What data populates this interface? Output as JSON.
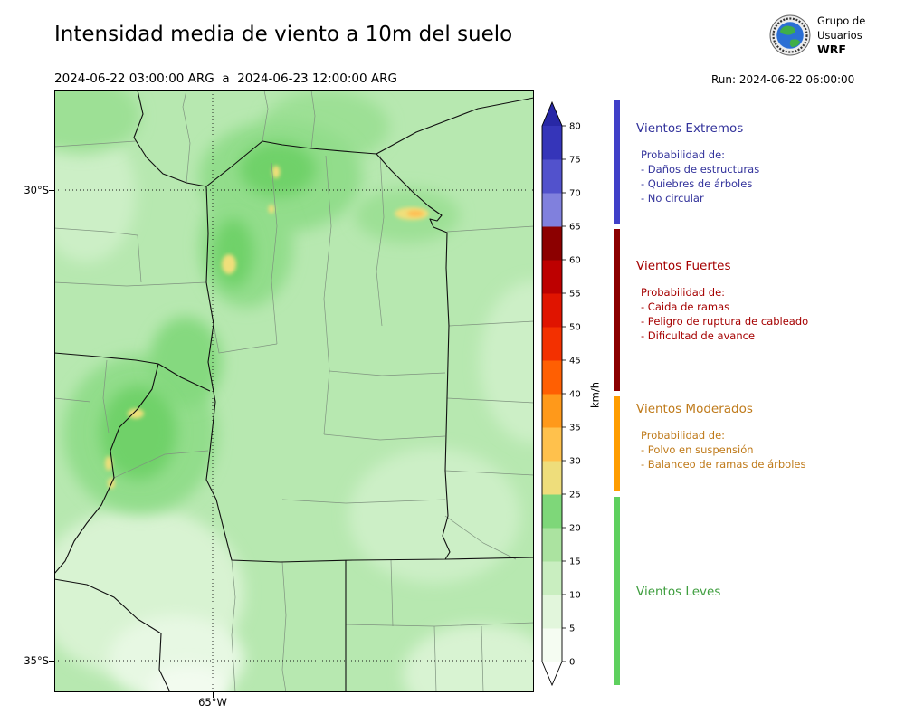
{
  "header": {
    "title": "Intensidad media de viento a 10m del suelo",
    "date_range": "2024-06-22 03:00:00 ARG  a  2024-06-23 12:00:00 ARG",
    "run_label": "Run: 2024-06-22 06:00:00",
    "logo": {
      "line1": "Grupo de",
      "line2": "Usuarios",
      "line3": "WRF"
    }
  },
  "map": {
    "lat_tick_top": "30°S",
    "lat_tick_bottom": "35°S",
    "lon_tick": "65°W",
    "base_color": "#b7e8b0"
  },
  "colorbar": {
    "unit": "km/h",
    "ticks": [
      0,
      5,
      10,
      15,
      20,
      25,
      30,
      35,
      40,
      45,
      50,
      55,
      60,
      65,
      70,
      75,
      80
    ],
    "segment_colors": [
      "#f5fcf2",
      "#e2f6dc",
      "#c9eec0",
      "#abe3a0",
      "#7ed779",
      "#eedd7b",
      "#ffc14c",
      "#ff991a",
      "#ff5f02",
      "#f33000",
      "#e01400",
      "#bd0000",
      "#8c0000",
      "#8080dd",
      "#5252cc",
      "#3535b9"
    ],
    "over_color": "#2828a6",
    "under_color": "#ffffff"
  },
  "legend": {
    "sections": [
      {
        "title": "Vientos Extremos",
        "strip_color": "#4040c8",
        "text_color": "#32329b",
        "heading": "Probabilidad de:",
        "items": [
          "- Daños de estructuras",
          "- Quiebres de árboles",
          "- No circular"
        ]
      },
      {
        "title": "Vientos Fuertes",
        "strip_color": "#8b0000",
        "text_color": "#a50000",
        "heading": "Probabilidad de:",
        "items": [
          "- Caida de ramas",
          "- Peligro de ruptura de cableado",
          "- Dificultad de avance"
        ]
      },
      {
        "title": "Vientos Moderados",
        "strip_color": "#ff9d00",
        "text_color": "#bf7a1a",
        "heading": "Probabilidad de:",
        "items": [
          "- Polvo en suspensión",
          "- Balanceo de ramas de árboles"
        ]
      },
      {
        "title": "Vientos Leves",
        "strip_color": "#5ed05e",
        "text_color": "#3f9e3f",
        "heading": "",
        "items": []
      }
    ]
  }
}
